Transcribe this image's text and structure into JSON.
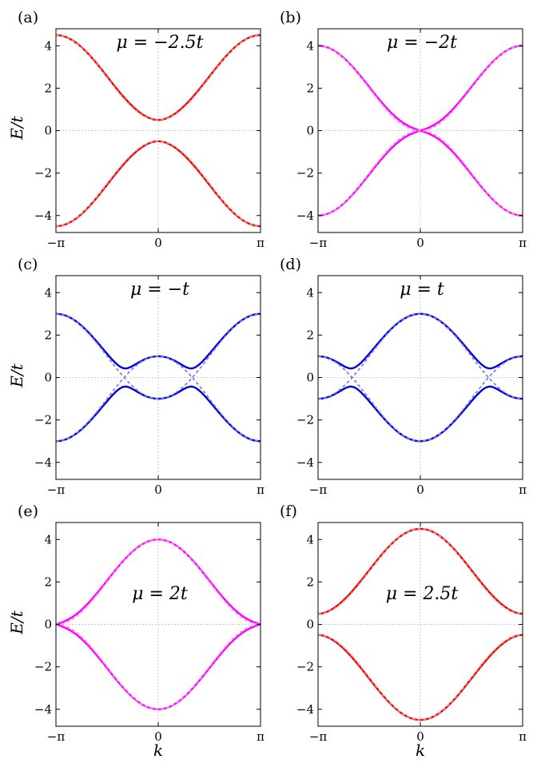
{
  "figure": {
    "ylabel": "E/t",
    "xlabel": "k",
    "y_ticks": [
      -4,
      -2,
      0,
      2,
      4
    ],
    "y_tick_labels": [
      "−4",
      "−2",
      "0",
      "2",
      "4"
    ],
    "x_ticks": [
      -3.14159,
      0,
      3.14159
    ],
    "x_tick_labels": [
      "−π",
      "0",
      "π"
    ]
  },
  "colors": {
    "red": "#ee0000",
    "magenta": "#ff00ff",
    "blue": "#0000dd",
    "red_dashed": "#f08a8a",
    "magenta_dashed": "#f58af5",
    "blue_dashed": "#7f7fee",
    "grid": "#b8b8b8"
  },
  "chart_data": [
    {
      "type": "line",
      "panel": "(a)",
      "annotation": "μ = −2.5t",
      "mu": -2.5,
      "color_key": "red",
      "xlim": [
        -3.14159,
        3.14159
      ],
      "ylim": [
        -4.8,
        4.8
      ],
      "grid": "dotted zero lines",
      "series": [
        {
          "style": "solid",
          "curve": "upper",
          "x": [
            -3.14,
            -1.57,
            0,
            1.57,
            3.14
          ],
          "values": [
            4.5,
            2.2,
            0.5,
            2.2,
            4.5
          ]
        },
        {
          "style": "solid",
          "curve": "lower",
          "x": [
            -3.14,
            -1.57,
            0,
            1.57,
            3.14
          ],
          "values": [
            -4.5,
            -2.2,
            -0.5,
            -2.2,
            -4.5
          ]
        },
        {
          "style": "dashed",
          "curve": "upper",
          "x": [
            -3.14,
            -1.57,
            0,
            1.57,
            3.14
          ],
          "values": [
            4.5,
            2.5,
            0.5,
            2.5,
            4.5
          ]
        },
        {
          "style": "dashed",
          "curve": "lower",
          "x": [
            -3.14,
            -1.57,
            0,
            1.57,
            3.14
          ],
          "values": [
            -4.5,
            -2.5,
            -0.5,
            -2.5,
            -4.5
          ]
        }
      ]
    },
    {
      "type": "line",
      "panel": "(b)",
      "annotation": "μ = −2t",
      "mu": -2,
      "color_key": "magenta",
      "xlim": [
        -3.14159,
        3.14159
      ],
      "ylim": [
        -4.8,
        4.8
      ],
      "grid": "dotted zero lines",
      "series": [
        {
          "style": "solid",
          "curve": "upper",
          "x": [
            -3.14,
            -1.57,
            0,
            1.57,
            3.14
          ],
          "values": [
            4.0,
            1.9,
            0.0,
            1.9,
            4.0
          ]
        },
        {
          "style": "solid",
          "curve": "lower",
          "x": [
            -3.14,
            -1.57,
            0,
            1.57,
            3.14
          ],
          "values": [
            -4.0,
            -1.9,
            0.0,
            -1.9,
            -4.0
          ]
        },
        {
          "style": "dashed",
          "curve": "upper",
          "x": [
            -3.14,
            -1.57,
            0,
            1.57,
            3.14
          ],
          "values": [
            4.0,
            2.0,
            0.0,
            2.0,
            4.0
          ]
        },
        {
          "style": "dashed",
          "curve": "lower",
          "x": [
            -3.14,
            -1.57,
            0,
            1.57,
            3.14
          ],
          "values": [
            -4.0,
            -2.0,
            0.0,
            -2.0,
            -4.0
          ]
        }
      ]
    },
    {
      "type": "line",
      "panel": "(c)",
      "annotation": "μ = −t",
      "mu": -1,
      "color_key": "blue",
      "xlim": [
        -3.14159,
        3.14159
      ],
      "ylim": [
        -4.8,
        4.8
      ],
      "grid": "dotted zero lines",
      "series": [
        {
          "style": "solid",
          "curve": "upper",
          "x": [
            -3.14,
            -1.57,
            -0.9,
            0,
            0.9,
            1.57,
            3.14
          ],
          "values": [
            3.0,
            0.9,
            0.85,
            1.0,
            0.85,
            0.9,
            3.0
          ]
        },
        {
          "style": "solid",
          "curve": "lower",
          "x": [
            -3.14,
            -1.57,
            -0.9,
            0,
            0.9,
            1.57,
            3.14
          ],
          "values": [
            -3.0,
            -0.9,
            -0.85,
            -1.0,
            -0.85,
            -0.9,
            -3.0
          ]
        },
        {
          "style": "dashed",
          "curve": "upper",
          "x": [
            -3.14,
            -1.57,
            -1.05,
            0,
            1.05,
            1.57,
            3.14
          ],
          "values": [
            3.0,
            1.0,
            0.0,
            -1.0,
            0.0,
            1.0,
            3.0
          ]
        },
        {
          "style": "dashed",
          "curve": "lower",
          "x": [
            -3.14,
            -1.57,
            -1.05,
            0,
            1.05,
            1.57,
            3.14
          ],
          "values": [
            -3.0,
            -1.0,
            0.0,
            1.0,
            0.0,
            -1.0,
            -3.0
          ]
        }
      ]
    },
    {
      "type": "line",
      "panel": "(d)",
      "annotation": "μ = t",
      "mu": 1,
      "color_key": "blue",
      "xlim": [
        -3.14159,
        3.14159
      ],
      "ylim": [
        -4.8,
        4.8
      ],
      "grid": "dotted zero lines",
      "series": [
        {
          "style": "solid",
          "curve": "upper",
          "x": [
            -3.14,
            -2.2,
            -1.57,
            0,
            1.57,
            2.2,
            3.14
          ],
          "values": [
            1.0,
            0.85,
            0.9,
            3.0,
            0.9,
            0.85,
            1.0
          ]
        },
        {
          "style": "solid",
          "curve": "lower",
          "x": [
            -3.14,
            -2.2,
            -1.57,
            0,
            1.57,
            2.2,
            3.14
          ],
          "values": [
            -1.0,
            -0.85,
            -0.9,
            -3.0,
            -0.9,
            -0.85,
            -1.0
          ]
        },
        {
          "style": "dashed",
          "curve": "upper",
          "x": [
            -3.14,
            -2.09,
            -1.57,
            0,
            1.57,
            2.09,
            3.14
          ],
          "values": [
            -1.0,
            0.0,
            1.0,
            3.0,
            1.0,
            0.0,
            -1.0
          ]
        },
        {
          "style": "dashed",
          "curve": "lower",
          "x": [
            -3.14,
            -2.09,
            -1.57,
            0,
            1.57,
            2.09,
            3.14
          ],
          "values": [
            1.0,
            0.0,
            -1.0,
            -3.0,
            -1.0,
            0.0,
            1.0
          ]
        }
      ]
    },
    {
      "type": "line",
      "panel": "(e)",
      "annotation": "μ = 2t",
      "mu": 2,
      "color_key": "magenta",
      "xlim": [
        -3.14159,
        3.14159
      ],
      "ylim": [
        -4.8,
        4.8
      ],
      "grid": "dotted zero lines",
      "series": [
        {
          "style": "solid",
          "curve": "upper",
          "x": [
            -3.14,
            -1.57,
            0,
            1.57,
            3.14
          ],
          "values": [
            0.0,
            1.9,
            4.0,
            1.9,
            0.0
          ]
        },
        {
          "style": "solid",
          "curve": "lower",
          "x": [
            -3.14,
            -1.57,
            0,
            1.57,
            3.14
          ],
          "values": [
            0.0,
            -1.9,
            -4.0,
            -1.9,
            0.0
          ]
        },
        {
          "style": "dashed",
          "curve": "upper",
          "x": [
            -3.14,
            -1.57,
            0,
            1.57,
            3.14
          ],
          "values": [
            0.0,
            2.0,
            4.0,
            2.0,
            0.0
          ]
        },
        {
          "style": "dashed",
          "curve": "lower",
          "x": [
            -3.14,
            -1.57,
            0,
            1.57,
            3.14
          ],
          "values": [
            0.0,
            -2.0,
            -4.0,
            -2.0,
            0.0
          ]
        }
      ]
    },
    {
      "type": "line",
      "panel": "(f)",
      "annotation": "μ = 2.5t",
      "mu": 2.5,
      "color_key": "red",
      "xlim": [
        -3.14159,
        3.14159
      ],
      "ylim": [
        -4.8,
        4.8
      ],
      "grid": "dotted zero lines",
      "series": [
        {
          "style": "solid",
          "curve": "upper",
          "x": [
            -3.14,
            -1.57,
            0,
            1.57,
            3.14
          ],
          "values": [
            0.5,
            2.2,
            4.5,
            2.2,
            0.5
          ]
        },
        {
          "style": "solid",
          "curve": "lower",
          "x": [
            -3.14,
            -1.57,
            0,
            1.57,
            3.14
          ],
          "values": [
            -0.5,
            -2.2,
            -4.5,
            -2.2,
            -0.5
          ]
        },
        {
          "style": "dashed",
          "curve": "upper",
          "x": [
            -3.14,
            -1.57,
            0,
            1.57,
            3.14
          ],
          "values": [
            0.5,
            2.5,
            4.5,
            2.5,
            0.5
          ]
        },
        {
          "style": "dashed",
          "curve": "lower",
          "x": [
            -3.14,
            -1.57,
            0,
            1.57,
            3.14
          ],
          "values": [
            -0.5,
            -2.5,
            -4.5,
            -2.5,
            -0.5
          ]
        }
      ]
    }
  ]
}
